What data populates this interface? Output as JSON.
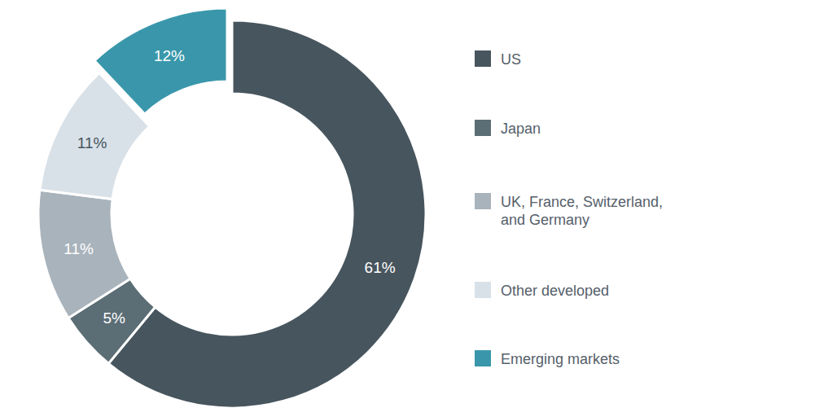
{
  "chart_data": {
    "type": "pie",
    "categories": [
      "US",
      "Japan",
      "UK, France, Switzerland, and Germany",
      "Other developed",
      "Emerging markets"
    ],
    "values": [
      61,
      5,
      11,
      11,
      12
    ],
    "value_labels": [
      "61%",
      "5%",
      "11%",
      "11%",
      "12%"
    ],
    "colors": [
      "#47555e",
      "#5b6d75",
      "#a9b3bb",
      "#d9e1e8",
      "#3a97ab"
    ],
    "data_labels": true,
    "legend": "right"
  }
}
